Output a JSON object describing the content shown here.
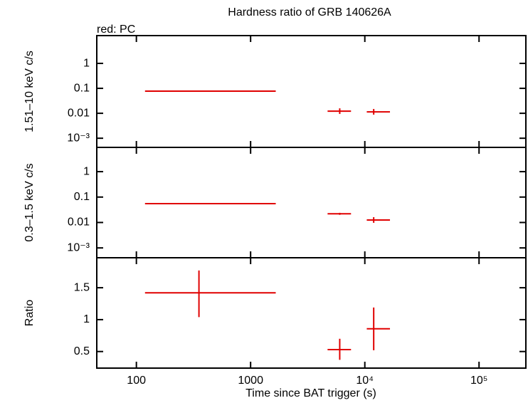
{
  "chart_data": [
    {
      "type": "errorbar",
      "title": "Hardness ratio of GRB 140626A",
      "annotation": "red: PC",
      "y_label": "1.51–10 keV c/s",
      "xlog": true,
      "ylog": true,
      "xlim": [
        45,
        257000
      ],
      "ylim": [
        0.00043,
        13
      ],
      "xticks": [
        100,
        1000,
        {
          "value": 10000,
          "label": "10⁴"
        },
        {
          "value": 100000,
          "label": "10⁵"
        }
      ],
      "yticks": [
        1,
        0.1,
        0.01,
        {
          "value": 0.001,
          "label": "10⁻³"
        }
      ],
      "series": [
        {
          "color": "#e00000",
          "x": [
            353,
            6030,
            11960
          ],
          "x_low": [
            119,
            4720,
            10400
          ],
          "x_high": [
            1660,
            7570,
            16600
          ],
          "values": [
            0.077,
            0.0122,
            0.0114
          ],
          "y_low": [
            0.074,
            0.0094,
            0.0088
          ],
          "y_high": [
            0.08,
            0.0158,
            0.0149
          ]
        }
      ]
    },
    {
      "type": "errorbar",
      "y_label": "0.3–1.5 keV c/s",
      "xlog": true,
      "ylog": true,
      "xlim": [
        45,
        257000
      ],
      "ylim": [
        0.00041,
        9
      ],
      "xticks": [
        100,
        1000,
        {
          "value": 10000,
          "label": "10⁴"
        },
        {
          "value": 100000,
          "label": "10⁵"
        }
      ],
      "yticks": [
        1,
        0.1,
        0.01,
        {
          "value": 0.001,
          "label": "10⁻³"
        }
      ],
      "series": [
        {
          "color": "#e00000",
          "x": [
            353,
            6030,
            11960
          ],
          "x_low": [
            119,
            4720,
            10400
          ],
          "x_high": [
            1660,
            7570,
            16600
          ],
          "values": [
            0.055,
            0.022,
            0.0125
          ],
          "y_low": [
            0.052,
            0.02,
            0.0097
          ],
          "y_high": [
            0.058,
            0.024,
            0.0162
          ]
        }
      ]
    },
    {
      "type": "errorbar",
      "y_label": "Ratio",
      "x_label": "Time since BAT trigger (s)",
      "xlog": true,
      "ylog": false,
      "xlim": [
        45,
        257000
      ],
      "ylim": [
        0.24,
        1.97
      ],
      "xticks": [
        100,
        1000,
        {
          "value": 10000,
          "label": "10⁴"
        },
        {
          "value": 100000,
          "label": "10⁵"
        }
      ],
      "yticks": [
        1.5,
        1,
        0.5
      ],
      "series": [
        {
          "color": "#e00000",
          "x": [
            353,
            6030,
            11960
          ],
          "x_low": [
            119,
            4720,
            10400
          ],
          "x_high": [
            1660,
            7570,
            16600
          ],
          "values": [
            1.42,
            0.53,
            0.856
          ],
          "y_low": [
            1.04,
            0.37,
            0.52
          ],
          "y_high": [
            1.77,
            0.7,
            1.19
          ]
        }
      ]
    }
  ]
}
